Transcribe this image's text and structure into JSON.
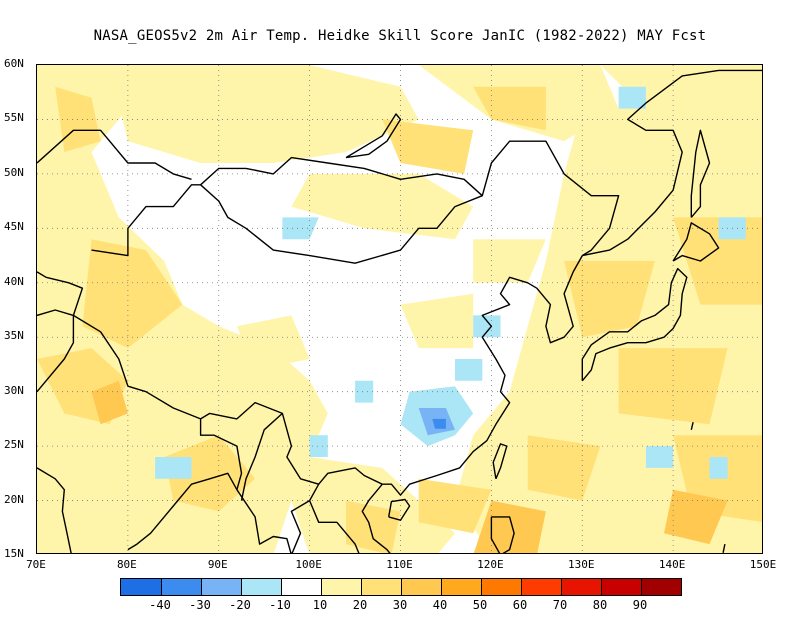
{
  "title": "NASA_GEOS5v2  2m Air Temp. Heidke Skill Score JanIC (1982-2022) MAY Fcst",
  "map": {
    "lon_range": [
      70,
      150
    ],
    "lat_range": [
      15,
      60
    ],
    "land_color": "#ffffff",
    "coast_color": "#000000",
    "grid": "dotted"
  },
  "axes": {
    "lat_labels": [
      "60N",
      "55N",
      "50N",
      "45N",
      "40N",
      "35N",
      "30N",
      "25N",
      "20N",
      "15N"
    ],
    "lon_labels": [
      "70E",
      "80E",
      "90E",
      "100E",
      "110E",
      "120E",
      "130E",
      "140E",
      "150E"
    ]
  },
  "colorbar": {
    "colors": [
      "#1e6ee6",
      "#3c8cf0",
      "#78b4f5",
      "#aae6f5",
      "#ffffff",
      "#fff5aa",
      "#ffe178",
      "#ffc850",
      "#ffaa1e",
      "#ff7800",
      "#ff3c00",
      "#e61400",
      "#c80000",
      "#a00000"
    ],
    "labels": [
      "-40",
      "-30",
      "-20",
      "-10",
      "10",
      "20",
      "30",
      "40",
      "50",
      "60",
      "70",
      "80",
      "90"
    ]
  }
}
